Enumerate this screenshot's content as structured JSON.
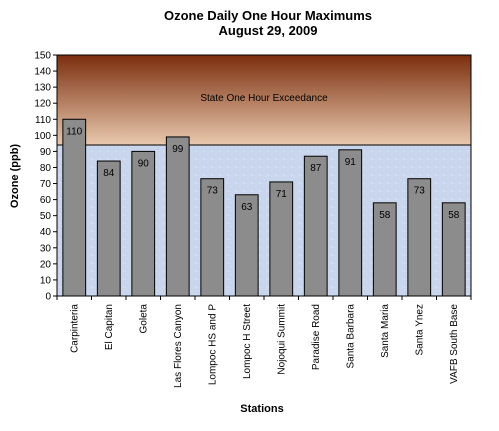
{
  "chart_data": {
    "type": "bar",
    "title": "Ozone Daily One Hour Maximums",
    "subtitle": "August 29, 2009",
    "xlabel": "Stations",
    "ylabel": "Ozone (ppb)",
    "ylim": [
      0,
      150
    ],
    "yticks": [
      0,
      10,
      20,
      30,
      40,
      50,
      60,
      70,
      80,
      90,
      100,
      110,
      120,
      130,
      140,
      150
    ],
    "categories": [
      "Carpinteria",
      "El Capitan",
      "Goleta",
      "Las Flores Canyon",
      "Lompoc HS and P",
      "Lompoc H Street",
      "Nojoqui Summit",
      "Paradise Road",
      "Santa Barbara",
      "Santa Maria",
      "Santa Ynez",
      "VAFB South Base"
    ],
    "values": [
      110,
      84,
      90,
      99,
      73,
      63,
      71,
      87,
      91,
      58,
      73,
      58
    ],
    "exceedance": {
      "label": "State One Hour Exceedance",
      "threshold": 94
    },
    "colors": {
      "bar": "#8c8c8c",
      "bar_border": "#000000",
      "exceed_top": "#7b2e0e",
      "exceed_bottom": "#e9c9ae",
      "below_fill": "#c8d6ee"
    }
  }
}
